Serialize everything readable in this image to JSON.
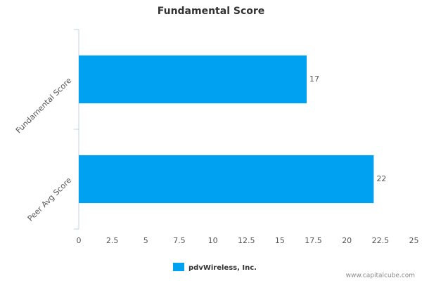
{
  "chart_data": {
    "type": "hbar",
    "title": "Fundamental Score",
    "categories": [
      "Fundamental Score",
      "Peer Avg Score"
    ],
    "series": [
      {
        "name": "pdvWireless, Inc.",
        "color": "#00a1f1",
        "values": [
          17,
          22
        ]
      }
    ],
    "xlim": [
      0,
      25
    ],
    "xticks": [
      0,
      2.5,
      5,
      7.5,
      10,
      12.5,
      15,
      17.5,
      20,
      22.5,
      25
    ],
    "grid": false,
    "legend": "bottom",
    "watermark": "www.capitalcube.com"
  }
}
